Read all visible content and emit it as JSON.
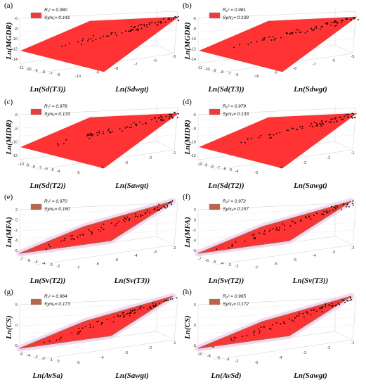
{
  "chart_data": [
    {
      "type": "scatter",
      "panel": "(a)",
      "zlabel": "Ln(MGDR)",
      "xlabel": "Ln(Sd(T3))",
      "ylabel": "Ln(Sdwgt)",
      "x_ticks": [
        "-11",
        "-10",
        "-9",
        "-8",
        "-7",
        "-6"
      ],
      "y_ticks": [
        "-10",
        "-9",
        "-8",
        "-7",
        "-6",
        "-5"
      ],
      "z_ticks": [
        "-14",
        "-12",
        "-10",
        "-8",
        "-6"
      ],
      "stat1": "R₁² = 0.980",
      "stat2": "Sy/x₁= 0.141",
      "plane_color": "#ff3333",
      "legend_color": "#ee3b3b"
    },
    {
      "type": "scatter",
      "panel": "(b)",
      "zlabel": "Ln(MGDR)",
      "xlabel": "Ln(Sd(T3))",
      "ylabel": "Ln(Sdwgt)",
      "x_ticks": [
        "-11",
        "-10",
        "-9",
        "-8",
        "-7",
        "-6"
      ],
      "y_ticks": [
        "-10",
        "-9",
        "-8",
        "-7",
        "-6",
        "-5"
      ],
      "z_ticks": [
        "-14",
        "-12",
        "-10",
        "-8",
        "-6"
      ],
      "stat1": "R₂² = 0.981",
      "stat2": "Sy/x₂= 0.139",
      "plane_color": "#ff3333",
      "legend_color": "#ee3b3b"
    },
    {
      "type": "scatter",
      "panel": "(c)",
      "zlabel": "Ln(MIDR)",
      "xlabel": "Ln(Sd(T2))",
      "ylabel": "Ln(Sawgt)",
      "x_ticks": [
        "-10",
        "-9",
        "-8",
        "-7",
        "-6",
        "-5",
        "-4"
      ],
      "y_ticks": [
        "-5",
        "-4",
        "-3",
        "-2",
        "-1"
      ],
      "z_ticks": [
        "-12",
        "-10",
        "-8",
        "-6"
      ],
      "stat1": "R₁² = 0.978",
      "stat2": "Sy/x₁= 0.133",
      "plane_color": "#ff3333",
      "legend_color": "#ee3b3b"
    },
    {
      "type": "scatter",
      "panel": "(d)",
      "zlabel": "Ln(MIDR)",
      "xlabel": "Ln(Sd(T2))",
      "ylabel": "Ln(Sawgt)",
      "x_ticks": [
        "-10",
        "-9",
        "-8",
        "-7",
        "-6",
        "-5",
        "-4"
      ],
      "y_ticks": [
        "-5",
        "-4",
        "-3",
        "-2",
        "-1"
      ],
      "z_ticks": [
        "-12",
        "-10",
        "-8",
        "-6"
      ],
      "stat1": "R₂² = 0.979",
      "stat2": "Sy/x₂= 0.133",
      "plane_color": "#ff3333",
      "legend_color": "#ee3b3b"
    },
    {
      "type": "scatter",
      "panel": "(e)",
      "zlabel": "Ln(MFA)",
      "xlabel": "Ln(Sv(T2))",
      "ylabel": "Ln(Sv(T3))",
      "x_ticks": [
        "-7",
        "-6",
        "-5",
        "-4",
        "-3",
        "-2"
      ],
      "y_ticks": [
        "-7",
        "-6",
        "-5",
        "-4",
        "-3",
        "-2"
      ],
      "z_ticks": [
        "-6",
        "-4",
        "-2",
        "0",
        "2"
      ],
      "stat1": "R₁² = 0.970",
      "stat2": "Sy/x₁= 0.160",
      "plane_color": "#ff3333",
      "legend_color": "#b8654a"
    },
    {
      "type": "scatter",
      "panel": "(f)",
      "zlabel": "Ln(MFA)",
      "xlabel": "Ln(Sv(T2))",
      "ylabel": "Ln(Sv(T3))",
      "x_ticks": [
        "-7",
        "-6",
        "-5",
        "-4",
        "-3",
        "-2"
      ],
      "y_ticks": [
        "-7",
        "-6",
        "-5",
        "-4",
        "-3",
        "-2"
      ],
      "z_ticks": [
        "-6",
        "-4",
        "-2",
        "0",
        "2"
      ],
      "stat1": "R₂² = 0.972",
      "stat2": "Sy/x₂= 0.157",
      "plane_color": "#ff3333",
      "legend_color": "#b8654a"
    },
    {
      "type": "scatter",
      "panel": "(g)",
      "zlabel": "Ln(CS)",
      "xlabel": "Ln(AvSa)",
      "ylabel": "Ln(Sawgt)",
      "x_ticks": [
        "-5",
        "-4",
        "-3",
        "-2",
        "-1",
        "0"
      ],
      "y_ticks": [
        "-5",
        "-4",
        "-3",
        "-2",
        "-1"
      ],
      "z_ticks": [
        "-5",
        "0",
        "5"
      ],
      "stat1": "R₁² = 0.964",
      "stat2": "Sy/x₁= 0.173",
      "plane_color": "#ff3333",
      "legend_color": "#b8654a"
    },
    {
      "type": "scatter",
      "panel": "(h)",
      "zlabel": "Ln(CS)",
      "xlabel": "Ln(AvSd)",
      "ylabel": "Ln(Sawgt)",
      "x_ticks": [
        "-10",
        "-8",
        "-6",
        "-4",
        "-2"
      ],
      "y_ticks": [
        "-5",
        "-4",
        "-3",
        "-2",
        "-1"
      ],
      "z_ticks": [
        "-5",
        "0",
        "5"
      ],
      "stat1": "R₂² = 0.965",
      "stat2": "Sy/x₂= 0.172",
      "plane_color": "#ff3333",
      "legend_color": "#b8654a"
    }
  ]
}
